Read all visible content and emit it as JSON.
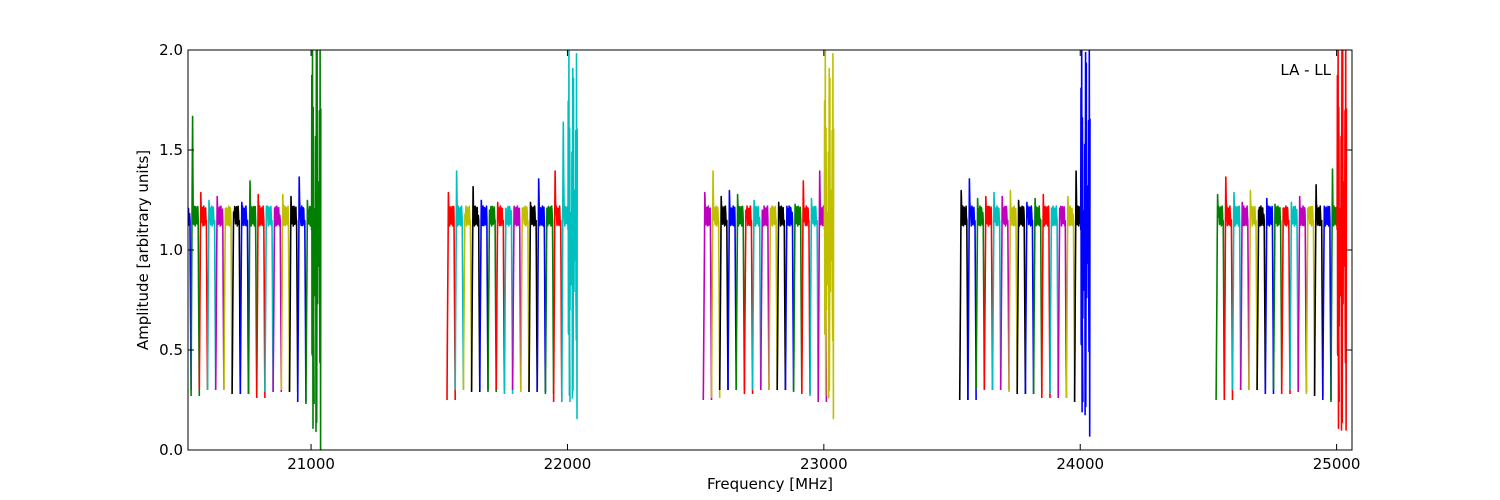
{
  "chart_data": {
    "type": "line",
    "title": "",
    "xlabel": "Frequency [MHz]",
    "ylabel": "Amplitude [arbitrary units]",
    "annotation": "LA - LL",
    "xlim": [
      20520,
      25060
    ],
    "ylim": [
      0.0,
      2.0
    ],
    "xticks": [
      21000,
      22000,
      23000,
      24000,
      25000
    ],
    "xtick_labels": [
      "21000",
      "22000",
      "23000",
      "24000",
      "25000"
    ],
    "yticks": [
      0.0,
      0.5,
      1.0,
      1.5,
      2.0
    ],
    "ytick_labels": [
      "0.0",
      "0.5",
      "1.0",
      "1.5",
      "2.0"
    ],
    "grid": false,
    "legend": "none",
    "channel_width_mhz": 32,
    "groups": [
      {
        "start": 20500,
        "colors": [
          "#0000ff",
          "#008000",
          "#ff0000",
          "#00bfbf",
          "#bf00bf",
          "#bfbf00",
          "#000000",
          "#0000ff",
          "#008000",
          "#ff0000",
          "#00bfbf",
          "#bf00bf",
          "#bfbf00",
          "#000000",
          "#0000ff",
          "#008000"
        ],
        "peaks": [
          1.27,
          1.68,
          1.29,
          1.25,
          1.27,
          1.21,
          1.19,
          1.24,
          1.35,
          1.28,
          1.22,
          1.21,
          1.28,
          1.27,
          1.37,
          1.25
        ],
        "mins": [
          0.3,
          0.27,
          0.3,
          0.3,
          0.3,
          0.3,
          0.28,
          0.28,
          0.28,
          0.26,
          0.29,
          0.29,
          0.3,
          0.29,
          0.24,
          0.23
        ],
        "edge": {
          "color": "#008000",
          "center": 21020,
          "amp": 1.2,
          "lo": 0.0,
          "hi": 2.0
        }
      },
      {
        "start": 21530,
        "colors": [
          "#ff0000",
          "#00bfbf",
          "#bfbf00",
          "#000000",
          "#0000ff",
          "#008000",
          "#ff0000",
          "#00bfbf",
          "#bf00bf",
          "#bfbf00",
          "#000000",
          "#0000ff",
          "#008000",
          "#ff0000",
          "#00bfbf"
        ],
        "peaks": [
          1.29,
          1.4,
          1.18,
          1.32,
          1.25,
          1.2,
          1.24,
          1.21,
          1.22,
          1.21,
          1.24,
          1.36,
          1.21,
          1.4,
          1.65
        ],
        "mins": [
          0.25,
          0.3,
          0.3,
          0.29,
          0.3,
          0.29,
          0.3,
          0.28,
          0.3,
          0.29,
          0.29,
          0.29,
          0.28,
          0.24,
          0.24
        ],
        "edge": {
          "color": "#00bfbf",
          "center": 22020,
          "amp": 1.0,
          "lo": 0.05,
          "hi": 2.0
        }
      },
      {
        "start": 22530,
        "colors": [
          "#bf00bf",
          "#bfbf00",
          "#000000",
          "#0000ff",
          "#008000",
          "#ff0000",
          "#00bfbf",
          "#bf00bf",
          "#bfbf00",
          "#000000",
          "#0000ff",
          "#008000",
          "#ff0000",
          "#00bfbf",
          "#bf00bf"
        ],
        "peaks": [
          1.29,
          1.4,
          1.27,
          1.3,
          1.28,
          1.2,
          1.25,
          1.2,
          1.21,
          1.24,
          1.22,
          1.23,
          1.35,
          1.26,
          1.4
        ],
        "mins": [
          0.25,
          0.26,
          0.3,
          0.3,
          0.3,
          0.28,
          0.3,
          0.3,
          0.3,
          0.3,
          0.3,
          0.29,
          0.28,
          0.27,
          0.24
        ],
        "edge": {
          "color": "#bfbf00",
          "center": 23020,
          "amp": 1.0,
          "lo": 0.06,
          "hi": 2.0
        }
      },
      {
        "start": 23530,
        "colors": [
          "#000000",
          "#0000ff",
          "#008000",
          "#ff0000",
          "#00bfbf",
          "#bf00bf",
          "#bfbf00",
          "#000000",
          "#0000ff",
          "#008000",
          "#ff0000",
          "#00bfbf",
          "#bf00bf",
          "#bfbf00",
          "#000000"
        ],
        "peaks": [
          1.3,
          1.36,
          1.26,
          1.27,
          1.29,
          1.27,
          1.3,
          1.25,
          1.24,
          1.26,
          1.28,
          1.21,
          1.21,
          1.27,
          1.4
        ],
        "mins": [
          0.25,
          0.25,
          0.3,
          0.3,
          0.3,
          0.3,
          0.29,
          0.28,
          0.28,
          0.28,
          0.26,
          0.28,
          0.26,
          0.26,
          0.24
        ],
        "edge": {
          "color": "#0000ff",
          "center": 24020,
          "amp": 1.1,
          "lo": 0.07,
          "hi": 2.0
        }
      },
      {
        "start": 24530,
        "colors": [
          "#008000",
          "#ff0000",
          "#00bfbf",
          "#bf00bf",
          "#bfbf00",
          "#000000",
          "#0000ff",
          "#008000",
          "#ff0000",
          "#00bfbf",
          "#bf00bf",
          "#bfbf00",
          "#000000",
          "#0000ff",
          "#008000"
        ],
        "peaks": [
          1.28,
          1.37,
          1.29,
          1.24,
          1.3,
          1.2,
          1.26,
          1.23,
          1.21,
          1.24,
          1.27,
          1.21,
          1.33,
          1.22,
          1.41
        ],
        "mins": [
          0.25,
          0.25,
          0.3,
          0.3,
          0.3,
          0.3,
          0.28,
          0.3,
          0.28,
          0.3,
          0.29,
          0.28,
          0.27,
          0.25,
          0.24
        ],
        "edge": {
          "color": "#ff0000",
          "center": 25020,
          "amp": 1.2,
          "lo": 0.1,
          "hi": 2.0
        }
      }
    ]
  }
}
